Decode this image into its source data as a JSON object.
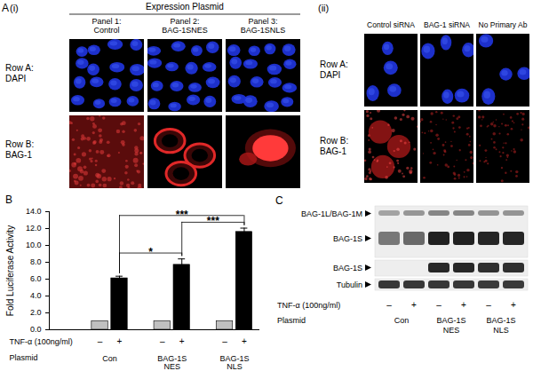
{
  "panel_A": {
    "letter": "A",
    "part_i": {
      "label": "(i)",
      "header": "Expression Plasmid",
      "columns": [
        [
          "Panel 1:",
          "Control"
        ],
        [
          "Panel 2:",
          "BAG-1SNES"
        ],
        [
          "Panel 3:",
          "BAG-1SNLS"
        ]
      ],
      "rows": [
        [
          "Row A:",
          "DAPI"
        ],
        [
          "Row B:",
          "BAG-1"
        ]
      ]
    },
    "part_ii": {
      "label": "(ii)",
      "columns": [
        "Control siRNA",
        "BAG-1 siRNA",
        "No Primary Ab"
      ],
      "rows": [
        [
          "Row A:",
          "DAPI"
        ],
        [
          "Row B:",
          "BAG-1"
        ]
      ]
    }
  },
  "chart_data": {
    "type": "bar",
    "panel_label": "B",
    "y_label": "Fold Luciferase Activity",
    "ylim": [
      0,
      14
    ],
    "yticks": [
      {
        "value": 0,
        "label": "0.0"
      },
      {
        "value": 2,
        "label": "2.0"
      },
      {
        "value": 4,
        "label": "4.0"
      },
      {
        "value": 6,
        "label": "6.0"
      },
      {
        "value": 8,
        "label": "8.0"
      },
      {
        "value": 10,
        "label": "10.0"
      },
      {
        "value": 12,
        "label": "12.0"
      },
      {
        "value": 14,
        "label": "14.0"
      }
    ],
    "categories": [
      "–",
      "+",
      "–",
      "+",
      "–",
      "+"
    ],
    "values": [
      1,
      6.1,
      1,
      7.7,
      1,
      11.6
    ],
    "errors": [
      null,
      0.25,
      null,
      0.7,
      null,
      0.45
    ],
    "colors": [
      "#c0c0c0",
      "#000000",
      "#c0c0c0",
      "#000000",
      "#c0c0c0",
      "#000000"
    ],
    "row_labels": [
      "TNF-α (100ng/ml)",
      "Plasmid"
    ],
    "groups": [
      [
        "Con"
      ],
      [
        "BAG-1S",
        "NES"
      ],
      [
        "BAG-1S",
        "NLS"
      ]
    ],
    "significance": [
      {
        "from": 1,
        "to": 3,
        "label": "*"
      },
      {
        "from": 1,
        "to": 5,
        "label": "***"
      },
      {
        "from": 3,
        "to": 5,
        "label": "***"
      }
    ]
  },
  "panel_C": {
    "letter": "C",
    "bands": [
      "BAG-1L/BAG-1M",
      "BAG-1S",
      "BAG-1S",
      "Tubulin"
    ],
    "lanes": [
      "–",
      "+",
      "–",
      "+",
      "–",
      "+"
    ],
    "row_labels": [
      "TNF-α (100ng/ml)",
      "Plasmid"
    ],
    "groups": [
      [
        "Con"
      ],
      [
        "BAG-1S",
        "NES"
      ],
      [
        "BAG-1S",
        "NLS"
      ]
    ]
  }
}
